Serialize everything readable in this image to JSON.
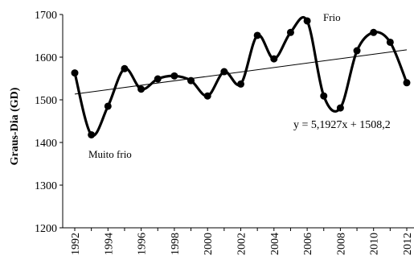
{
  "chart_data": {
    "type": "line",
    "ylabel": "Graus-Dia (GD)",
    "xlabel": "",
    "ylim": [
      1200,
      1700
    ],
    "yticks": [
      1200,
      1300,
      1400,
      1500,
      1600,
      1700
    ],
    "xlim": [
      1992,
      2012
    ],
    "xticks": [
      1992,
      1994,
      1996,
      1998,
      2000,
      2002,
      2004,
      2006,
      2008,
      2010,
      2012
    ],
    "grid": false,
    "series": [
      {
        "x": [
          1992,
          1993,
          1994,
          1995,
          1996,
          1997,
          1998,
          1999,
          2000,
          2001,
          2002,
          2003,
          2004,
          2005,
          2006,
          2007,
          2008,
          2009,
          2010,
          2011,
          2012
        ],
        "values": [
          1563,
          1418,
          1485,
          1573,
          1525,
          1549,
          1556,
          1545,
          1509,
          1566,
          1537,
          1651,
          1596,
          1658,
          1685,
          1509,
          1481,
          1615,
          1658,
          1635,
          1540
        ],
        "color": "#000000"
      }
    ],
    "trendline": {
      "slope": 5.1927,
      "intercept": 1508.2,
      "equation": "y = 5,1927x + 1508,2"
    },
    "annotations": [
      {
        "text": "Frio",
        "x": 2006,
        "y": 1685
      },
      {
        "text": "Muito frio",
        "x": 1993,
        "y": 1418
      }
    ]
  }
}
